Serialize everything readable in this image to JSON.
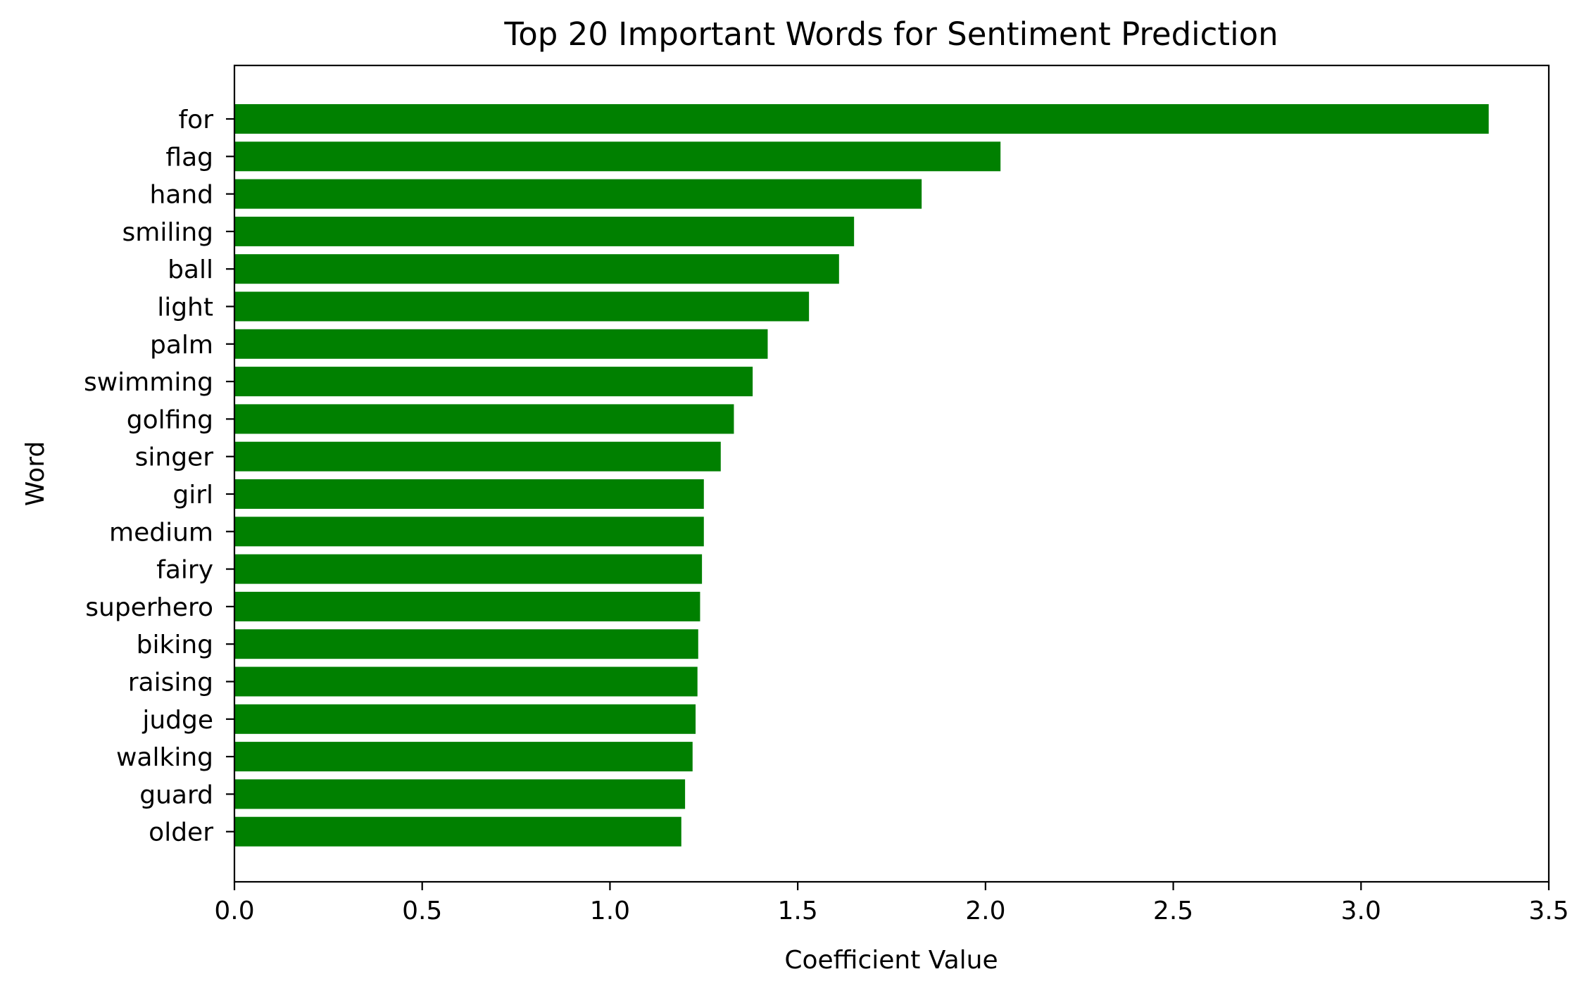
{
  "chart_data": {
    "type": "bar",
    "orientation": "horizontal",
    "title": "Top 20 Important Words for Sentiment Prediction",
    "xlabel": "Coefficient Value",
    "ylabel": "Word",
    "xlim": [
      0,
      3.5
    ],
    "xticks": [
      "0.0",
      "0.5",
      "1.0",
      "1.5",
      "2.0",
      "2.5",
      "3.0",
      "3.5"
    ],
    "grid": false,
    "bar_color": "#008000",
    "categories": [
      "for",
      "flag",
      "hand",
      "smiling",
      "ball",
      "light",
      "palm",
      "swimming",
      "golfing",
      "singer",
      "girl",
      "medium",
      "fairy",
      "superhero",
      "biking",
      "raising",
      "judge",
      "walking",
      "guard",
      "older"
    ],
    "values": [
      3.34,
      2.04,
      1.83,
      1.65,
      1.61,
      1.53,
      1.42,
      1.38,
      1.33,
      1.295,
      1.25,
      1.25,
      1.245,
      1.24,
      1.235,
      1.233,
      1.228,
      1.22,
      1.2,
      1.19
    ]
  }
}
